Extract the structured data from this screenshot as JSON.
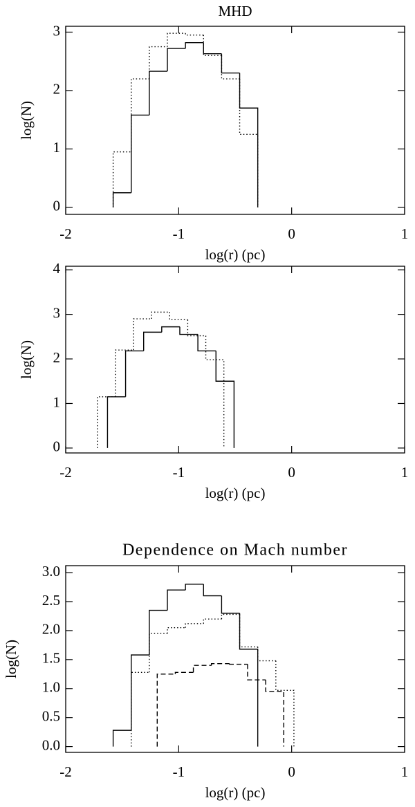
{
  "chart_data": [
    {
      "type": "histogram",
      "title": "MHD",
      "x_label": "log(r) (pc)",
      "y_label": "log(N)",
      "xlim": [
        -2,
        1
      ],
      "xticks": [
        -2,
        -1,
        0,
        1
      ],
      "ylim": [
        -0.12,
        3.1
      ],
      "yticks": [
        0,
        1,
        2,
        3
      ],
      "series": [
        {
          "color": "#000000",
          "line_style": "solid",
          "bins": [
            -1.58,
            -1.42,
            -1.26,
            -1.1,
            -0.94,
            -0.78,
            -0.62,
            -0.46,
            -0.3
          ],
          "values": [
            0.25,
            1.58,
            2.33,
            2.72,
            2.82,
            2.63,
            2.3,
            1.7
          ]
        },
        {
          "color": "#000000",
          "line_style": "dotted",
          "bins": [
            -1.58,
            -1.42,
            -1.26,
            -1.1,
            -0.94,
            -0.78,
            -0.62,
            -0.46,
            -0.3
          ],
          "values": [
            0.95,
            2.2,
            2.75,
            2.98,
            2.95,
            2.6,
            2.2,
            1.25
          ]
        }
      ]
    },
    {
      "type": "histogram",
      "x_label": "log(r) (pc)",
      "y_label": "log(N)",
      "xlim": [
        -2,
        1
      ],
      "xticks": [
        -2,
        -1,
        0,
        1
      ],
      "ylim": [
        -0.11,
        4.08
      ],
      "yticks": [
        0,
        1,
        2,
        3,
        4
      ],
      "series": [
        {
          "color": "#000000",
          "line_style": "solid",
          "bins": [
            -1.63,
            -1.47,
            -1.31,
            -1.15,
            -0.99,
            -0.83,
            -0.67,
            -0.51
          ],
          "values": [
            1.15,
            2.18,
            2.6,
            2.72,
            2.55,
            2.18,
            1.5
          ]
        },
        {
          "color": "#000000",
          "line_style": "dotted",
          "bins": [
            -1.72,
            -1.56,
            -1.4,
            -1.24,
            -1.08,
            -0.92,
            -0.76,
            -0.6
          ],
          "values": [
            1.15,
            2.2,
            2.9,
            3.05,
            2.88,
            2.52,
            1.98
          ]
        }
      ]
    },
    {
      "type": "histogram",
      "title": "Dependence on Mach number",
      "x_label": "log(r) (pc)",
      "y_label": "log(N)",
      "xlim": [
        -2,
        1
      ],
      "xticks": [
        -2,
        -1,
        0,
        1
      ],
      "ylim": [
        -0.1,
        3.12
      ],
      "yticks": [
        {
          "value": 0,
          "label": "0.0"
        },
        0.5,
        {
          "value": 1,
          "label": "1.0"
        },
        1.5,
        {
          "value": 2,
          "label": "2.0"
        },
        2.5,
        {
          "value": 3,
          "label": "3.0"
        }
      ],
      "series": [
        {
          "color": "#000000",
          "line_style": "solid",
          "bins": [
            -1.58,
            -1.42,
            -1.26,
            -1.1,
            -0.94,
            -0.78,
            -0.62,
            -0.46,
            -0.3
          ],
          "values": [
            0.28,
            1.58,
            2.35,
            2.7,
            2.8,
            2.6,
            2.3,
            1.68
          ]
        },
        {
          "color": "#000000",
          "line_style": "dotted",
          "bins": [
            -1.42,
            -1.26,
            -1.1,
            -0.94,
            -0.78,
            -0.62,
            -0.46,
            -0.3,
            -0.14,
            0.02
          ],
          "values": [
            1.28,
            1.95,
            2.05,
            2.12,
            2.2,
            2.28,
            1.72,
            1.48,
            0.97
          ]
        },
        {
          "color": "#000000",
          "line_style": "dashed",
          "bins": [
            -1.19,
            -1.03,
            -0.87,
            -0.71,
            -0.55,
            -0.39,
            -0.23,
            -0.07
          ],
          "values": [
            1.25,
            1.28,
            1.4,
            1.43,
            1.42,
            1.15,
            0.95
          ]
        }
      ]
    }
  ]
}
